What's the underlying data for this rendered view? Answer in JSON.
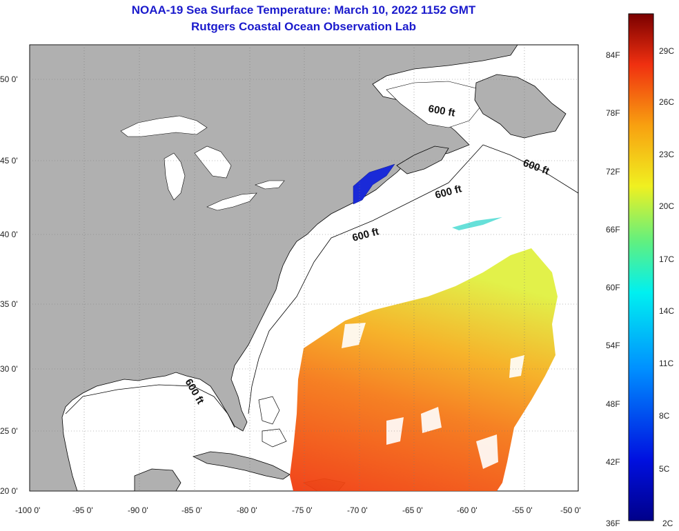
{
  "title": "NOAA-19 Sea Surface Temperature:  March 10, 2022 1152 GMT",
  "subtitle": "Rutgers Coastal Ocean Observation Lab",
  "lat_labels": [
    "50 0'",
    "45 0'",
    "40 0'",
    "35 0'",
    "30 0'",
    "25 0'",
    "20 0'"
  ],
  "lon_labels": [
    "-100 0'",
    "-95 0'",
    "-90 0'",
    "-85 0'",
    "-80 0'",
    "-75 0'",
    "-70 0'",
    "-65 0'",
    "-60 0'",
    "-55 0'",
    "-50 0'"
  ],
  "depth_label": "600 ft",
  "colorbar": {
    "f_labels": [
      "84F",
      "78F",
      "72F",
      "66F",
      "60F",
      "54F",
      "48F",
      "42F",
      "36F"
    ],
    "c_labels": [
      "29C",
      "26C",
      "23C",
      "20C",
      "17C",
      "14C",
      "11C",
      "8C",
      "5C",
      "2C"
    ]
  },
  "colors": {
    "land": "#b0b0b0",
    "ocean": "#ffffff",
    "title": "#1a1acc",
    "sst_warm": "#f04a10",
    "sst_mid": "#f5a020",
    "sst_cool": "#e8f020",
    "cold_patch": "#1a2ad8"
  }
}
